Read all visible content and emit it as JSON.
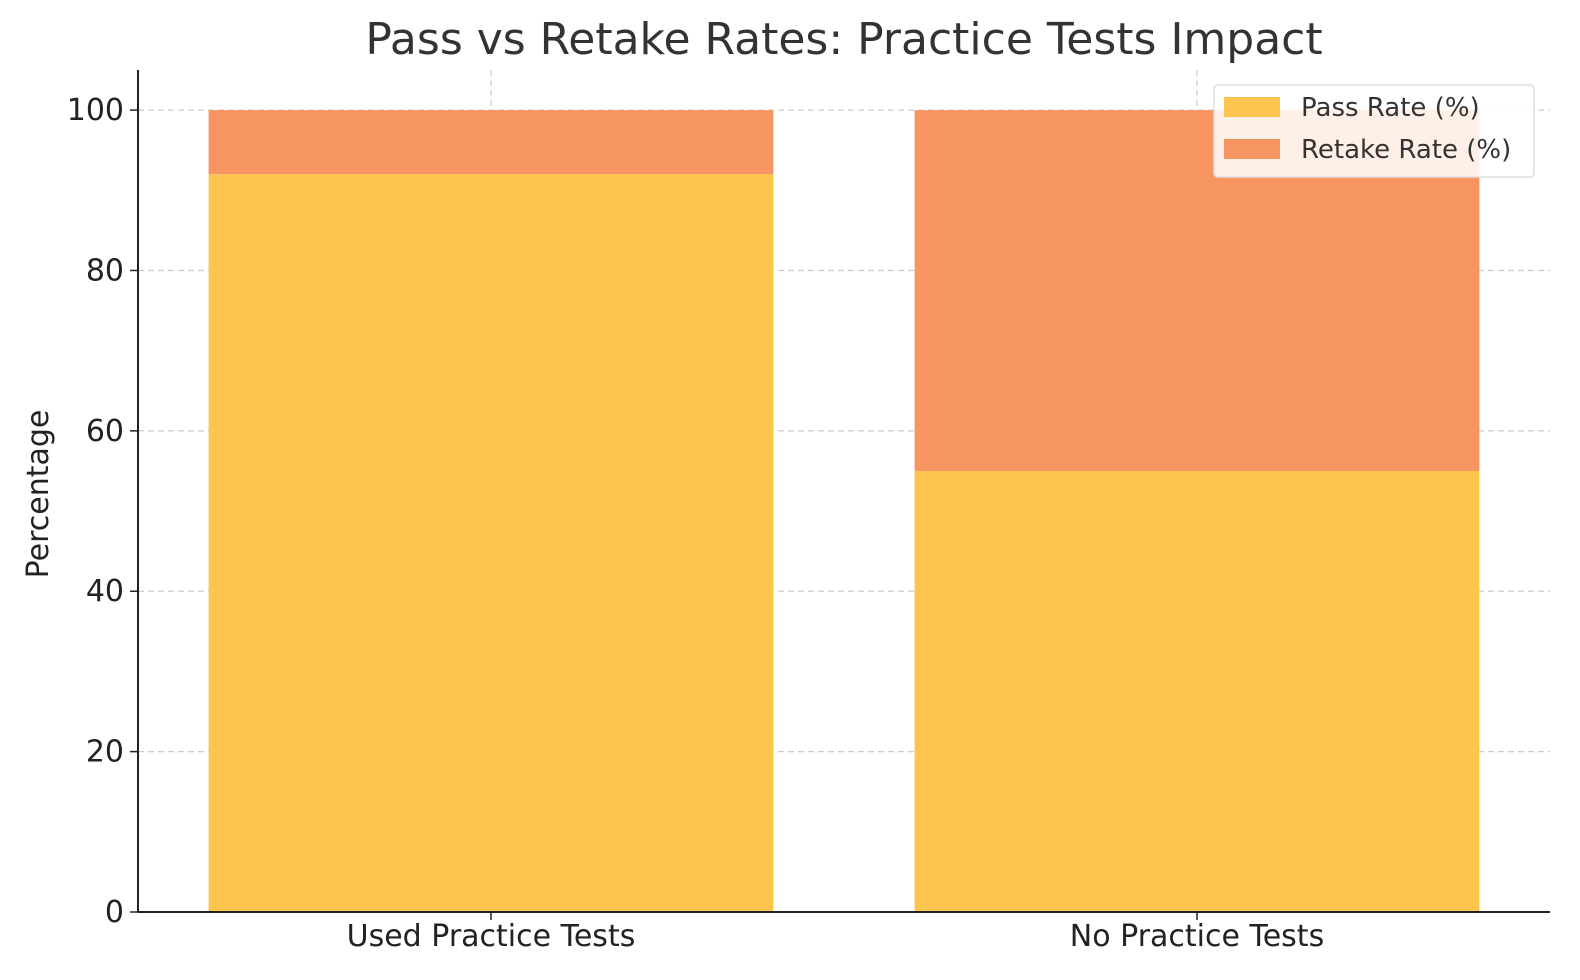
{
  "chart_data": {
    "type": "bar",
    "stacked": true,
    "title": "Pass vs Retake Rates: Practice Tests Impact",
    "xlabel": "",
    "ylabel": "Percentage",
    "categories": [
      "Used Practice Tests",
      "No Practice Tests"
    ],
    "series": [
      {
        "name": "Pass Rate (%)",
        "values": [
          92,
          55
        ],
        "color": "#FDC44E"
      },
      {
        "name": "Retake Rate (%)",
        "values": [
          8,
          45
        ],
        "color": "#F69462"
      }
    ],
    "ylim": [
      0,
      105
    ],
    "yticks": [
      0,
      20,
      40,
      60,
      80,
      100
    ],
    "grid": true,
    "legend": "top-right"
  }
}
